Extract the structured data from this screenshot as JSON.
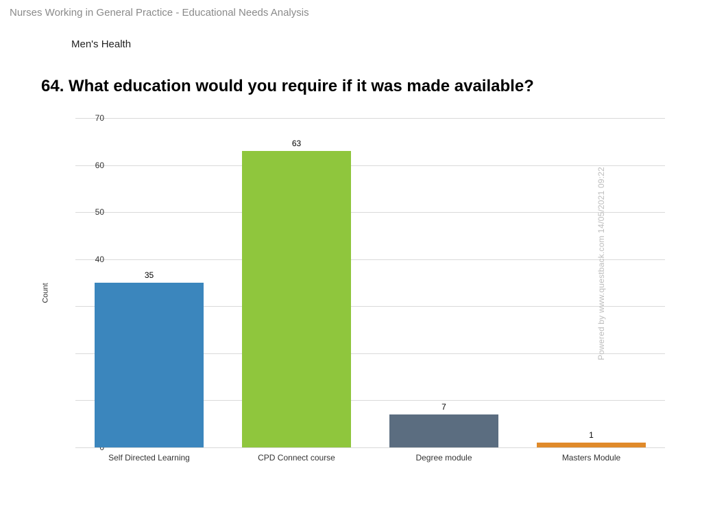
{
  "header": {
    "title": "Nurses Working in General Practice - Educational Needs Analysis",
    "section": "Men's Health",
    "question": "64. What education would you require if it was made available?"
  },
  "chart": {
    "type": "bar",
    "y_axis_label": "Count",
    "ylim": [
      0,
      70
    ],
    "ytick_step": 10,
    "yticks": [
      0,
      10,
      20,
      30,
      40,
      50,
      60,
      70
    ],
    "grid_color": "#d9d9d9",
    "background_color": "#ffffff",
    "label_fontsize": 12,
    "title_fontsize": 24,
    "tick_fontsize": 12,
    "value_fontsize": 12,
    "bar_width_ratio": 0.74,
    "categories": [
      "Self Directed Learning",
      "CPD Connect course",
      "Degree module",
      "Masters Module"
    ],
    "values": [
      35,
      63,
      7,
      1
    ],
    "bar_colors": [
      "#3b86bd",
      "#8fc63d",
      "#5b6d80",
      "#e08a2a"
    ]
  },
  "watermark": {
    "text": "Powered by www.questback.com     14/05/2021 09:22",
    "color": "#bdbdbd",
    "fontsize": 12
  }
}
